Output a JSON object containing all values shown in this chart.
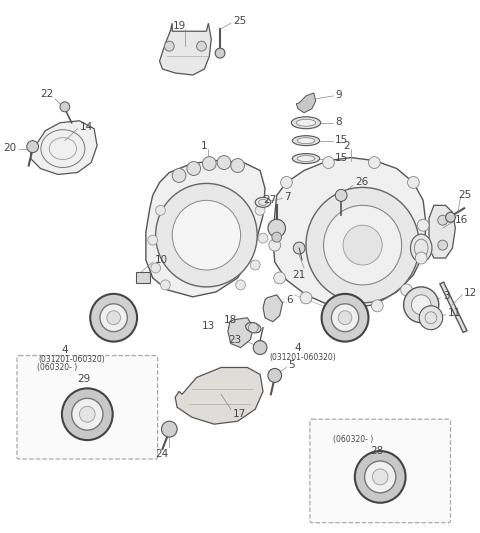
{
  "bg_color": "#ffffff",
  "fig_width": 4.8,
  "fig_height": 5.33,
  "dpi": 100,
  "text_color": "#444444",
  "line_color": "#666666",
  "part_fill": "#f2f2f2",
  "part_edge": "#555555"
}
